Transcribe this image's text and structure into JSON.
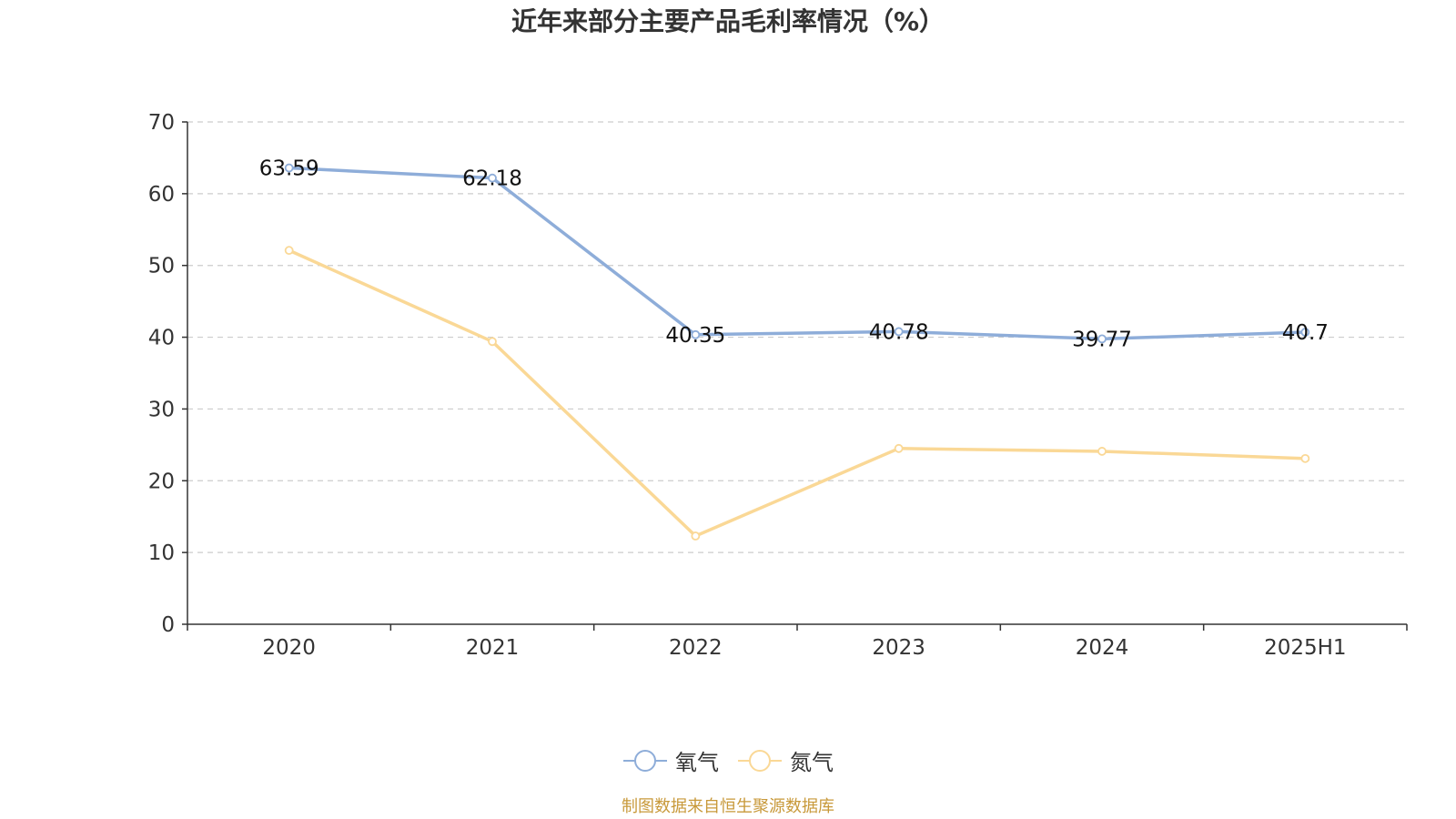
{
  "chart_data": {
    "type": "line",
    "title": "近年来部分主要产品毛利率情况（%）",
    "categories": [
      "2020",
      "2021",
      "2022",
      "2023",
      "2024",
      "2025H1"
    ],
    "series": [
      {
        "name": "氧气",
        "values": [
          63.59,
          62.18,
          40.35,
          40.78,
          39.77,
          40.7
        ],
        "color": "#8eadd9",
        "data_labels": true
      },
      {
        "name": "氮气",
        "values": [
          52.1,
          39.4,
          12.3,
          24.5,
          24.1,
          23.1
        ],
        "color": "#fad896",
        "data_labels": false
      }
    ],
    "ylim": [
      0,
      70
    ],
    "yticks": [
      0,
      10,
      20,
      30,
      40,
      50,
      60,
      70
    ],
    "grid": true,
    "legend_position": "bottom",
    "source": "制图数据来自恒生聚源数据库"
  }
}
